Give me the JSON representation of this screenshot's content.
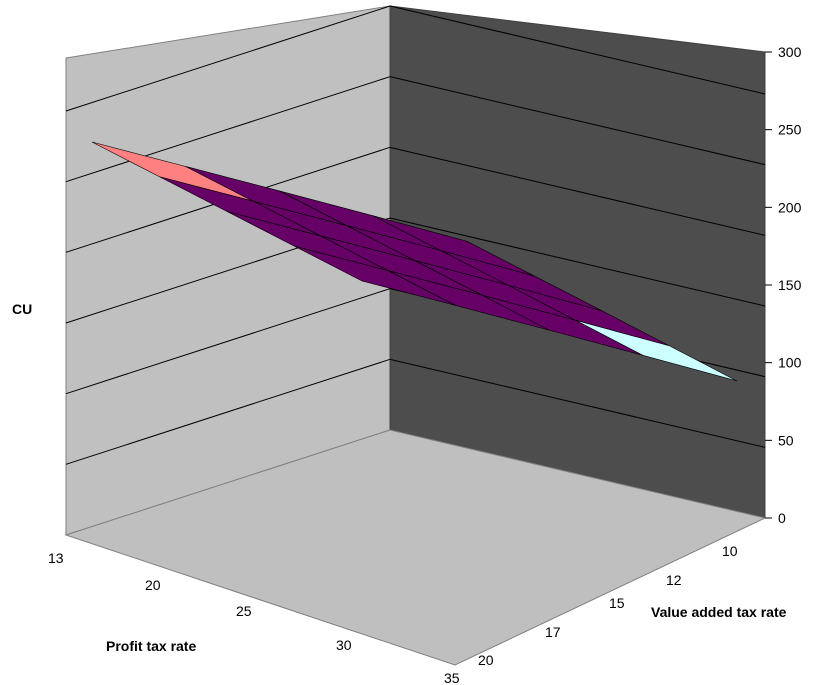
{
  "chart_data": {
    "type": "surface",
    "title": "",
    "zlabel": "CU",
    "xlabel": "Profit tax rate",
    "ylabel": "Value added tax rate",
    "x_ticks": [
      "13",
      "20",
      "25",
      "30",
      "35"
    ],
    "y_ticks": [
      "10",
      "12",
      "15",
      "17",
      "20"
    ],
    "z_ticks": [
      "0",
      "50",
      "100",
      "150",
      "200",
      "250",
      "300"
    ],
    "zlim": [
      0,
      300
    ],
    "bands": [
      {
        "range": [
          250,
          300
        ],
        "color": "#ff8080"
      },
      {
        "range": [
          200,
          250
        ],
        "color": "#660066"
      },
      {
        "range": [
          150,
          200
        ],
        "color": "#ccffff"
      }
    ],
    "values": [
      [
        262,
        255,
        248,
        240,
        230
      ],
      [
        250,
        243,
        236,
        228,
        218
      ],
      [
        238,
        231,
        224,
        216,
        206
      ],
      [
        226,
        219,
        212,
        203,
        193
      ],
      [
        214,
        207,
        199,
        190,
        180
      ]
    ]
  },
  "colors": {
    "back_wall": "#c0c0c0",
    "right_wall": "#4d4d4d",
    "floor": "#bfbfbf"
  }
}
